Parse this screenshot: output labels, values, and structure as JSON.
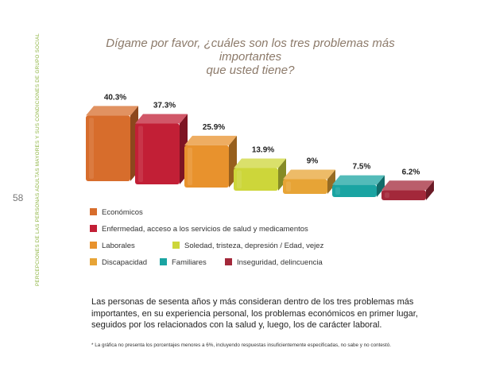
{
  "side_text": "PERCEPCIONES DE LAS PERSONAS ADULTAS MAYORES Y SUS CONDICIONES DE GRUPO SOCIAL",
  "page_number": "58",
  "title_line1": "Dígame por favor, ¿cuáles son los tres problemas más importantes",
  "title_line2": "que usted tiene?",
  "chart_data": {
    "type": "bar",
    "title": "Dígame por favor, ¿cuáles son los tres problemas más importantes que usted tiene?",
    "categories": [
      "Económicos",
      "Enfermedad, acceso a los servicios de salud y medicamentos",
      "Laborales",
      "Soledad, tristeza, depresión / Edad, vejez",
      "Discapacidad",
      "Familiares",
      "Inseguridad, delincuencia"
    ],
    "values": [
      40.3,
      37.3,
      25.9,
      13.9,
      9,
      7.5,
      6.2
    ],
    "value_labels": [
      "40.3%",
      "37.3%",
      "25.9%",
      "13.9%",
      "9%",
      "7.5%",
      "6.2%"
    ],
    "colors": [
      "#d76d2c",
      "#c21f36",
      "#e8922d",
      "#cdd63a",
      "#e7a436",
      "#1aa4a2",
      "#a3283a"
    ],
    "xlabel": "",
    "ylabel": "",
    "ylim": [
      0,
      45
    ],
    "grid": false
  },
  "legend": [
    {
      "label": "Económicos",
      "color": "#d76d2c"
    },
    {
      "label": "Enfermedad, acceso a los servicios de salud y medicamentos",
      "color": "#c21f36"
    },
    {
      "label": "Laborales",
      "color": "#e8922d"
    },
    {
      "label": "Soledad, tristeza, depresión / Edad, vejez",
      "color": "#cdd63a"
    },
    {
      "label": "Discapacidad",
      "color": "#e7a436"
    },
    {
      "label": "Familiares",
      "color": "#1aa4a2"
    },
    {
      "label": "Inseguridad, delincuencia",
      "color": "#a3283a"
    }
  ],
  "body_lines": [
    "Las personas de sesenta años y más consideran dentro de los tres problemas más",
    "importantes, en su experiencia personal, los problemas económicos en primer lugar,",
    "seguidos por los relacionados con la salud y, luego, los de carácter laboral."
  ],
  "footnote": "* La gráfica no presenta los porcentajes menores a 6%, incluyendo respuestas insuficientemente especificadas, no sabe y no contestó."
}
